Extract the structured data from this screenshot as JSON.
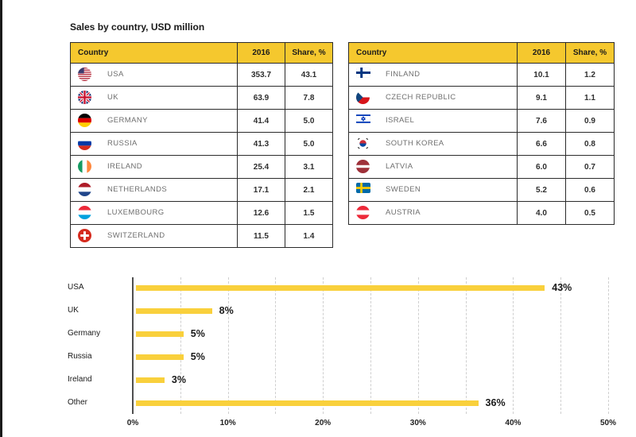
{
  "title": "Sales by country, USD million",
  "table_headers": {
    "country": "Country",
    "year": "2016",
    "share": "Share, %"
  },
  "left_table": [
    {
      "country": "USA",
      "flag": "usa",
      "icon": "usa-flag-icon",
      "value": "353.7",
      "share": "43.1"
    },
    {
      "country": "UK",
      "flag": "uk",
      "icon": "uk-flag-icon",
      "value": "63.9",
      "share": "7.8"
    },
    {
      "country": "GERMANY",
      "flag": "germany",
      "icon": "germany-flag-icon",
      "value": "41.4",
      "share": "5.0"
    },
    {
      "country": "RUSSIA",
      "flag": "russia",
      "icon": "russia-flag-icon",
      "value": "41.3",
      "share": "5.0"
    },
    {
      "country": "IRELAND",
      "flag": "ireland",
      "icon": "ireland-flag-icon",
      "value": "25.4",
      "share": "3.1"
    },
    {
      "country": "NETHERLANDS",
      "flag": "netherlands",
      "icon": "netherlands-flag-icon",
      "value": "17.1",
      "share": "2.1"
    },
    {
      "country": "LUXEMBOURG",
      "flag": "luxembourg",
      "icon": "luxembourg-flag-icon",
      "value": "12.6",
      "share": "1.5"
    },
    {
      "country": "SWITZERLAND",
      "flag": "switzerland",
      "icon": "switzerland-flag-icon",
      "value": "11.5",
      "share": "1.4"
    }
  ],
  "right_table": [
    {
      "country": "FINLAND",
      "flag": "finland",
      "icon": "finland-flag-icon",
      "value": "10.1",
      "share": "1.2"
    },
    {
      "country": "CZECH REPUBLIC",
      "flag": "czech-republic",
      "icon": "czech-republic-flag-icon",
      "value": "9.1",
      "share": "1.1"
    },
    {
      "country": "ISRAEL",
      "flag": "israel",
      "icon": "israel-flag-icon",
      "value": "7.6",
      "share": "0.9"
    },
    {
      "country": "SOUTH KOREA",
      "flag": "south-korea",
      "icon": "south-korea-flag-icon",
      "value": "6.6",
      "share": "0.8"
    },
    {
      "country": "LATVIA",
      "flag": "latvia",
      "icon": "latvia-flag-icon",
      "value": "6.0",
      "share": "0.7"
    },
    {
      "country": "SWEDEN",
      "flag": "sweden",
      "icon": "sweden-flag-icon",
      "value": "5.2",
      "share": "0.6"
    },
    {
      "country": "AUSTRIA",
      "flag": "austria",
      "icon": "austria-flag-icon",
      "value": "4.0",
      "share": "0.5"
    }
  ],
  "chart_data": {
    "type": "bar",
    "orientation": "horizontal",
    "categories": [
      "USA",
      "UK",
      "Germany",
      "Russia",
      "Ireland",
      "Other"
    ],
    "values": [
      43,
      8,
      5,
      5,
      3,
      36
    ],
    "value_labels": [
      "43%",
      "8%",
      "5%",
      "5%",
      "3%",
      "36%"
    ],
    "title": "",
    "xlabel": "",
    "ylabel": "",
    "xlim": [
      0,
      50
    ],
    "x_ticks": [
      0,
      10,
      20,
      30,
      40,
      50
    ],
    "x_tick_labels": [
      "0%",
      "10%",
      "20%",
      "30%",
      "40%",
      "50%"
    ],
    "gridline_step": 5,
    "grid": "vertical-dashed",
    "legend": "none"
  },
  "colors": {
    "header_yellow": "#f5c82e",
    "bar_yellow": "#f9d03c",
    "table_border": "#2b2b2b",
    "country_text": "#6e6e6e",
    "value_text": "#2e2e2e",
    "axis_line": "#4f4f4f",
    "gridline": "#cfcfcf",
    "page_edge": "#1a1a1a"
  }
}
